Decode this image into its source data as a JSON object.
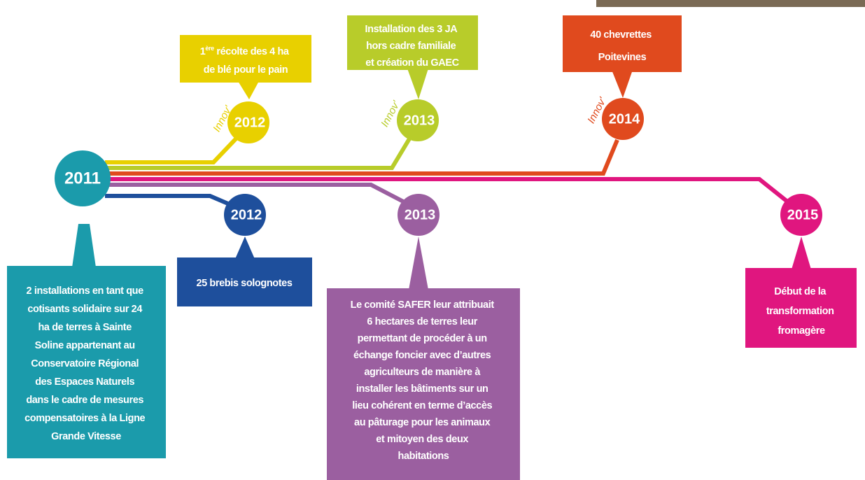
{
  "start": {
    "year": "2011",
    "lines": [
      "2 installations en tant que",
      "cotisants solidaire sur 24",
      "ha de terres à Sainte",
      "Soline appartenant au",
      "Conservatoire Régional",
      "des Espaces Naturels",
      "dans le cadre de mesures",
      "compensatoires à la Ligne",
      "Grande Vitesse"
    ]
  },
  "events": [
    {
      "year": "2012",
      "tag": "Innov'",
      "first_line": {
        "number": "1",
        "superscript": "ère",
        "rest": "récolte des 4 ha"
      },
      "lines": [
        "de blé pour le pain"
      ]
    },
    {
      "year": "2013",
      "tag": "Innov'",
      "lines": [
        "Installation des 3 JA",
        "hors cadre familiale",
        "et création du GAEC"
      ]
    },
    {
      "year": "2014",
      "tag": "Innov'",
      "lines": [
        "40 chevrettes",
        "Poitevines"
      ]
    },
    {
      "year": "2012",
      "lines": [
        "25 brebis solognotes"
      ]
    },
    {
      "year": "2013",
      "lines": [
        "Le comité SAFER leur attribuait",
        "6 hectares de terres leur",
        "permettant de procéder à un",
        "échange foncier avec d’autres",
        "agriculteurs de manière à",
        "installer les bâtiments sur un",
        "lieu cohérent en terme d’accès",
        "au pâturage pour les animaux",
        "et mitoyen des deux",
        "habitations"
      ]
    },
    {
      "year": "2015",
      "lines": [
        "Début de la",
        "transformation",
        "fromagère"
      ]
    }
  ]
}
